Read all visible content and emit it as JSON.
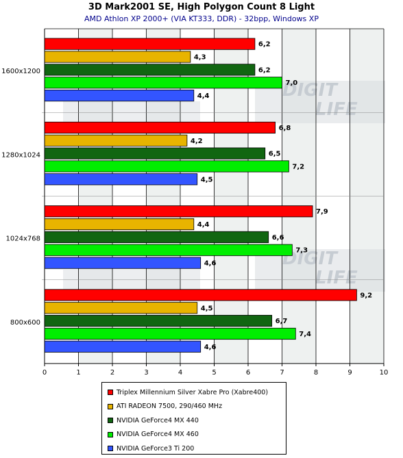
{
  "chart_data": {
    "type": "bar",
    "orientation": "horizontal",
    "title": "3D Mark2001 SE, High Polygon Count 8 Light",
    "subtitle": "AMD Athlon XP 2000+ (VIA KT333, DDR) - 32bpp, Windows XP",
    "categories": [
      "1600x1200",
      "1280x1024",
      "1024x768",
      "800x600"
    ],
    "series": [
      {
        "name": "Triplex Millennium Silver Xabre Pro (Xabre400)",
        "color": "#ff0000",
        "values": [
          6.2,
          6.8,
          7.9,
          9.2
        ],
        "labels": [
          "6,2",
          "6,8",
          "7,9",
          "9,2"
        ]
      },
      {
        "name": "ATI RADEON 7500, 290/460 MHz",
        "color": "#e8b400",
        "values": [
          4.3,
          4.2,
          4.4,
          4.5
        ],
        "labels": [
          "4,3",
          "4,2",
          "4,4",
          "4,5"
        ]
      },
      {
        "name": "NVIDIA GeForce4 MX 440",
        "color": "#116611",
        "values": [
          6.2,
          6.5,
          6.6,
          6.7
        ],
        "labels": [
          "6,2",
          "6,5",
          "6,6",
          "6,7"
        ]
      },
      {
        "name": "NVIDIA GeForce4 MX 460",
        "color": "#00ee00",
        "values": [
          7.0,
          7.2,
          7.3,
          7.4
        ],
        "labels": [
          "7,0",
          "7,2",
          "7,3",
          "7,4"
        ]
      },
      {
        "name": "NVIDIA GeForce3 Ti 200",
        "color": "#3355ff",
        "values": [
          4.4,
          4.5,
          4.6,
          4.6
        ],
        "labels": [
          "4,4",
          "4,5",
          "4,6",
          "4,6"
        ]
      }
    ],
    "xlim": [
      0,
      10
    ],
    "xticks": [
      0,
      1,
      2,
      3,
      4,
      5,
      6,
      7,
      8,
      9,
      10
    ],
    "grid": "vertical",
    "legend_position": "bottom",
    "watermark": [
      "DIGIT",
      "LIFE"
    ]
  }
}
